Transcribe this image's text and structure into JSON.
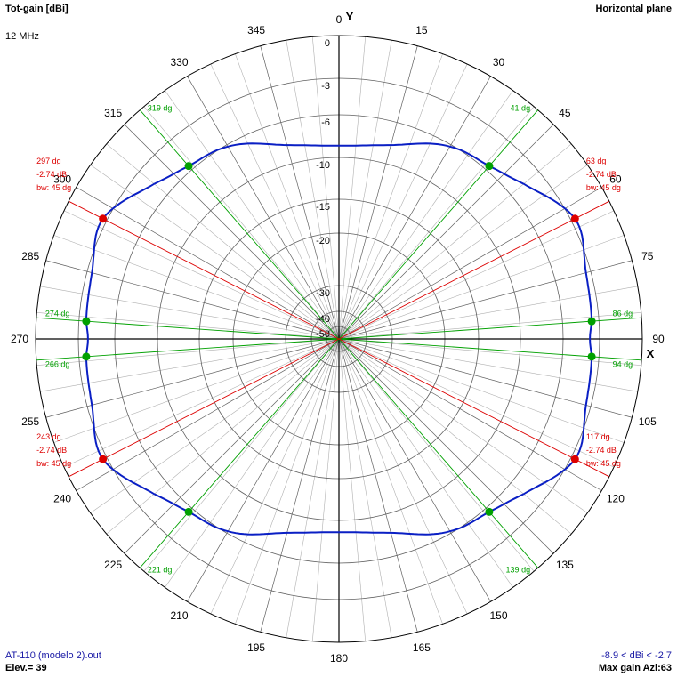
{
  "header": {
    "left_title": "Tot-gain [dBi]",
    "freq": "12 MHz",
    "right_title": "Horizontal plane",
    "y_axis": "Y",
    "x_axis": "X"
  },
  "footer": {
    "file": "AT-110 (modelo 2).out",
    "elevation": "Elev.= 39",
    "range": "-8.9 < dBi < -2.7",
    "max_gain": "Max gain Azi:63"
  },
  "colors": {
    "pattern": "#0a1fc4",
    "green": "#00a000",
    "red": "#dd0000",
    "grid": "#606060",
    "grid_light": "#b0b0b0"
  },
  "chart_data": {
    "type": "polar",
    "title": "Tot-gain [dBi]",
    "subtitle": "Horizontal plane",
    "azimuth_labels": [
      "0",
      "15",
      "30",
      "45",
      "60",
      "75",
      "90",
      "105",
      "120",
      "135",
      "150",
      "165",
      "180",
      "195",
      "210",
      "225",
      "240",
      "255",
      "270",
      "285",
      "300",
      "315",
      "330",
      "345"
    ],
    "radial_labels": [
      {
        "value": 0,
        "text": "0"
      },
      {
        "value": -3,
        "text": "-3"
      },
      {
        "value": -6,
        "text": "-6"
      },
      {
        "value": -10,
        "text": "-10"
      },
      {
        "value": -15,
        "text": "-15"
      },
      {
        "value": -20,
        "text": "-20"
      },
      {
        "value": -30,
        "text": "-30"
      },
      {
        "value": -40,
        "text": "-40"
      },
      {
        "value": -50,
        "text": "-50"
      }
    ],
    "pattern": {
      "azimuth_deg": [
        0,
        15,
        30,
        41,
        50,
        63,
        75,
        86,
        90,
        94,
        105,
        117,
        130,
        139,
        150,
        165,
        180,
        195,
        210,
        221,
        230,
        243,
        255,
        266,
        270,
        274,
        285,
        297,
        310,
        319,
        330,
        345
      ],
      "gain_dbi": [
        -8.9,
        -8.2,
        -6.2,
        -5.6,
        -4.6,
        -2.7,
        -3.4,
        -3.6,
        -3.8,
        -3.6,
        -3.4,
        -2.7,
        -4.6,
        -5.6,
        -6.2,
        -8.2,
        -8.9,
        -8.2,
        -6.2,
        -5.6,
        -4.6,
        -2.7,
        -3.4,
        -3.6,
        -3.8,
        -3.6,
        -3.4,
        -2.7,
        -4.6,
        -5.6,
        -6.2,
        -8.2
      ]
    },
    "max_markers": [
      {
        "azimuth": 63,
        "label": "63 dg",
        "gain": "-2.74 dB",
        "bw": "bw: 45 dg"
      },
      {
        "azimuth": 117,
        "label": "117 dg",
        "gain": "-2.74 dB",
        "bw": "bw: 45 dg"
      },
      {
        "azimuth": 243,
        "label": "243 dg",
        "gain": "-2.74 dB",
        "bw": "bw: 45 dg"
      },
      {
        "azimuth": 297,
        "label": "297 dg",
        "gain": "-2.74 dB",
        "bw": "bw: 45 dg"
      }
    ],
    "halfpower_markers": [
      {
        "azimuth": 41,
        "label": "41 dg"
      },
      {
        "azimuth": 86,
        "label": "86 dg"
      },
      {
        "azimuth": 94,
        "label": "94 dg"
      },
      {
        "azimuth": 139,
        "label": "139 dg"
      },
      {
        "azimuth": 221,
        "label": "221 dg"
      },
      {
        "azimuth": 266,
        "label": "266 dg"
      },
      {
        "azimuth": 274,
        "label": "274 dg"
      },
      {
        "azimuth": 319,
        "label": "319 dg"
      }
    ],
    "grid": true
  }
}
